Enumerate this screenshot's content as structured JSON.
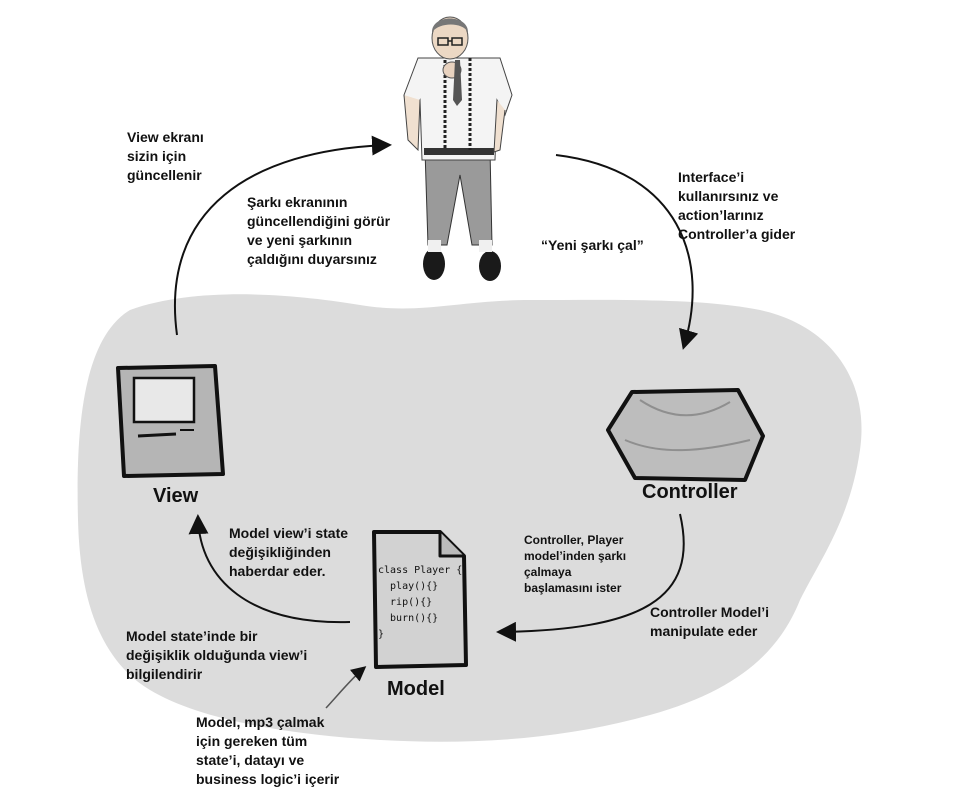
{
  "nodes": {
    "view": {
      "title": "View"
    },
    "controller": {
      "title": "Controller"
    },
    "model": {
      "title": "Model",
      "code_lines": [
        "class Player {",
        "  play(){}",
        "  rip(){}",
        "  burn(){}",
        "}"
      ]
    }
  },
  "annotations": {
    "view_updated": "View ekranı\nsizin için\ngüncellenir",
    "see_screen": "Şarkı ekranının\ngüncellendiğini görür\nve yeni şarkının\nçaldığını duyarsınız",
    "interface_actions": "Interface’i\nkullanırsınız ve\naction’larınız\nController’a gider",
    "play_new_song": "“Yeni şarkı çal”",
    "controller_asks": "Controller, Player\nmodel’inden şarkı\nçalmaya\nbaşlamasını ister",
    "controller_manipulates": "Controller Model’i\nmanipulate eder",
    "model_notifies": "Model view’i state\ndeğişikliğinden\nhaberdar eder.",
    "state_change": "Model state’inde bir\ndeğişiklik olduğunda view’i\nbilgilendirir",
    "model_contains": "Model, mp3 çalmak\niçin gereken tüm\nstate’i, datayı ve\nbusiness logic’i içerir"
  },
  "colors": {
    "blob": "#dcdcdc",
    "ink": "#111111",
    "device": "#b5b5b5",
    "screen": "#e8e8e8",
    "hexagon": "#bdbdbd",
    "paper": "#d2d2d2",
    "shirt": "#f4f4f4",
    "jeans": "#9a9a9a"
  }
}
